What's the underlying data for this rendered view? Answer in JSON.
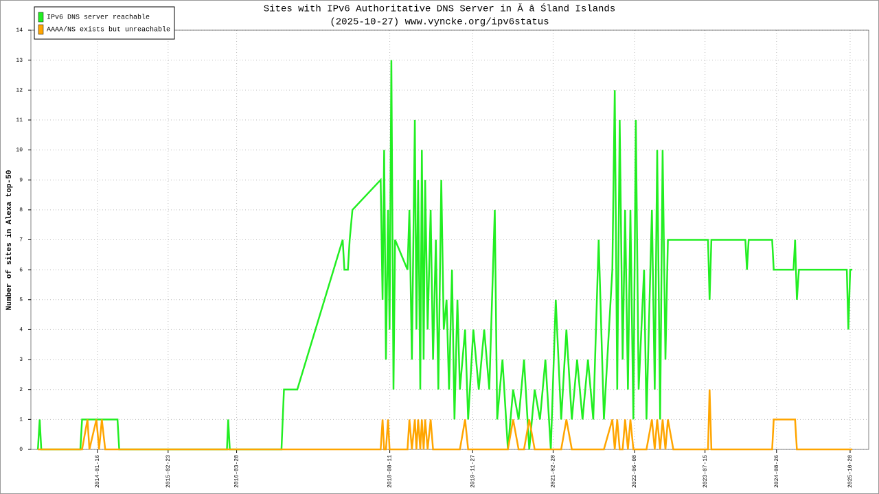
{
  "chart_data": {
    "type": "line",
    "title": "Sites with IPv6 Authoritative DNS Server in Ă â Śland Islands",
    "subtitle": "(2025-10-27) www.vyncke.org/ipv6status",
    "y_label": "Number of sites in Alexa top-50",
    "legend": "top-left",
    "grid": true,
    "xlim": [
      "2013-01-01",
      "2026-02-03"
    ],
    "xticks": [
      "2014-01-16",
      "2015-02-23",
      "2016-03-20",
      "2018-08-11",
      "2019-11-27",
      "2021-02-28",
      "2022-06-08",
      "2023-07-15",
      "2024-08-26",
      "2025-10-20"
    ],
    "ylim": [
      0,
      14
    ],
    "yticks": [
      0,
      1,
      2,
      3,
      4,
      5,
      6,
      7,
      8,
      9,
      10,
      11,
      12,
      13,
      14
    ],
    "x": [
      "2013-02-10",
      "2013-02-20",
      "2013-03-01",
      "2013-10-10",
      "2013-10-20",
      "2013-11-20",
      "2013-12-01",
      "2014-01-10",
      "2014-01-25",
      "2014-02-10",
      "2014-03-01",
      "2014-05-10",
      "2014-05-20",
      "2016-01-25",
      "2016-02-01",
      "2016-02-10",
      "2016-12-01",
      "2016-12-15",
      "2017-03-01",
      "2017-11-15",
      "2017-11-25",
      "2017-12-15",
      "2017-12-25",
      "2018-01-10",
      "2018-06-20",
      "2018-07-01",
      "2018-07-10",
      "2018-07-20",
      "2018-08-01",
      "2018-08-10",
      "2018-08-20",
      "2018-09-01",
      "2018-09-10",
      "2018-11-20",
      "2018-12-01",
      "2018-12-15",
      "2019-01-01",
      "2019-01-10",
      "2019-01-20",
      "2019-02-01",
      "2019-02-10",
      "2019-02-20",
      "2019-03-01",
      "2019-03-15",
      "2019-04-01",
      "2019-04-15",
      "2019-05-01",
      "2019-05-15",
      "2019-06-01",
      "2019-06-15",
      "2019-07-01",
      "2019-07-15",
      "2019-08-01",
      "2019-08-15",
      "2019-09-01",
      "2019-09-15",
      "2019-10-15",
      "2019-11-01",
      "2019-12-01",
      "2020-01-01",
      "2020-02-01",
      "2020-03-01",
      "2020-04-01",
      "2020-04-15",
      "2020-05-15",
      "2020-06-15",
      "2020-07-15",
      "2020-08-15",
      "2020-09-15",
      "2020-10-15",
      "2020-11-15",
      "2020-12-15",
      "2021-01-15",
      "2021-02-15",
      "2021-03-15",
      "2021-04-15",
      "2021-05-15",
      "2021-06-15",
      "2021-07-15",
      "2021-08-15",
      "2021-09-15",
      "2021-10-15",
      "2021-11-15",
      "2021-12-15",
      "2022-02-01",
      "2022-02-15",
      "2022-03-01",
      "2022-03-15",
      "2022-04-01",
      "2022-04-15",
      "2022-05-01",
      "2022-05-15",
      "2022-06-01",
      "2022-06-15",
      "2022-07-01",
      "2022-08-01",
      "2022-08-15",
      "2022-09-15",
      "2022-10-01",
      "2022-10-15",
      "2022-11-01",
      "2022-11-15",
      "2022-12-01",
      "2022-12-15",
      "2023-01-15",
      "2023-08-01",
      "2023-08-10",
      "2023-08-20",
      "2024-03-01",
      "2024-03-10",
      "2024-03-20",
      "2024-08-01",
      "2024-08-10",
      "2024-12-01",
      "2024-12-10",
      "2024-12-20",
      "2025-01-01",
      "2025-10-01",
      "2025-10-10",
      "2025-10-20",
      "2025-11-01"
    ],
    "series": [
      {
        "name": "IPv6 DNS server reachable",
        "color": "#22ee22",
        "values": [
          0,
          1,
          0,
          0,
          1,
          1,
          1,
          1,
          1,
          1,
          1,
          1,
          0,
          0,
          1,
          0,
          0,
          2,
          2,
          7,
          6,
          6,
          7,
          8,
          9,
          5,
          10,
          3,
          8,
          4,
          13,
          2,
          7,
          6,
          8,
          3,
          11,
          4,
          9,
          2,
          10,
          3,
          9,
          4,
          8,
          3,
          7,
          2,
          9,
          4,
          5,
          2,
          6,
          1,
          5,
          2,
          4,
          1,
          4,
          2,
          4,
          2,
          8,
          1,
          3,
          0,
          2,
          1,
          3,
          0,
          2,
          1,
          3,
          0,
          5,
          1,
          4,
          1,
          3,
          1,
          3,
          1,
          7,
          1,
          6,
          12,
          2,
          11,
          3,
          8,
          2,
          8,
          1,
          11,
          2,
          6,
          1,
          8,
          2,
          10,
          1,
          10,
          3,
          7,
          7,
          7,
          5,
          7,
          7,
          6,
          7,
          7,
          6,
          6,
          7,
          5,
          6,
          6,
          4,
          6,
          6
        ]
      },
      {
        "name": "AAAA/NS exists but unreachable",
        "color": "#ffa500",
        "values": [
          0,
          0,
          0,
          0,
          0,
          1,
          0,
          1,
          0,
          1,
          0,
          0,
          0,
          0,
          0,
          0,
          0,
          0,
          0,
          0,
          0,
          0,
          0,
          0,
          0,
          1,
          0,
          0,
          1,
          0,
          0,
          0,
          0,
          0,
          1,
          0,
          1,
          0,
          1,
          0,
          1,
          0,
          1,
          0,
          1,
          0,
          0,
          0,
          0,
          0,
          0,
          0,
          0,
          0,
          0,
          0,
          1,
          0,
          0,
          0,
          0,
          0,
          0,
          0,
          0,
          0,
          1,
          0,
          0,
          1,
          0,
          0,
          0,
          0,
          0,
          0,
          1,
          0,
          0,
          0,
          0,
          0,
          0,
          0,
          1,
          0,
          1,
          0,
          0,
          1,
          0,
          1,
          0,
          0,
          0,
          0,
          0,
          1,
          0,
          1,
          0,
          1,
          0,
          1,
          0,
          0,
          2,
          0,
          0,
          0,
          0,
          0,
          1,
          1,
          1,
          0,
          0,
          0,
          0,
          0,
          0
        ]
      }
    ]
  }
}
